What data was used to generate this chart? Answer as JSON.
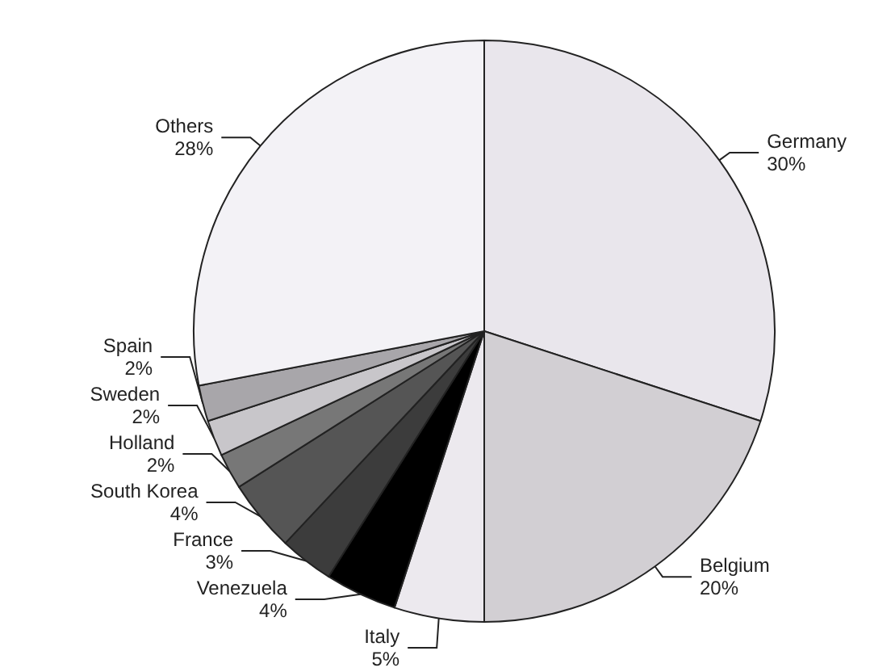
{
  "chart_data": {
    "type": "pie",
    "categories": [
      "Germany",
      "Belgium",
      "Italy",
      "Venezuela",
      "France",
      "South Korea",
      "Holland",
      "Sweden",
      "Spain",
      "Others"
    ],
    "values": [
      30,
      20,
      5,
      4,
      3,
      4,
      2,
      2,
      2,
      28
    ],
    "colors": [
      "#e9e6ec",
      "#d2cfd3",
      "#ece9ee",
      "#000000",
      "#3c3c3c",
      "#555555",
      "#777777",
      "#c8c6ca",
      "#a8a6aa",
      "#f3f2f6"
    ],
    "value_labels": [
      "30%",
      "20%",
      "5%",
      "4%",
      "3%",
      "4%",
      "2%",
      "2%",
      "2%",
      "28%"
    ],
    "legend": false
  }
}
